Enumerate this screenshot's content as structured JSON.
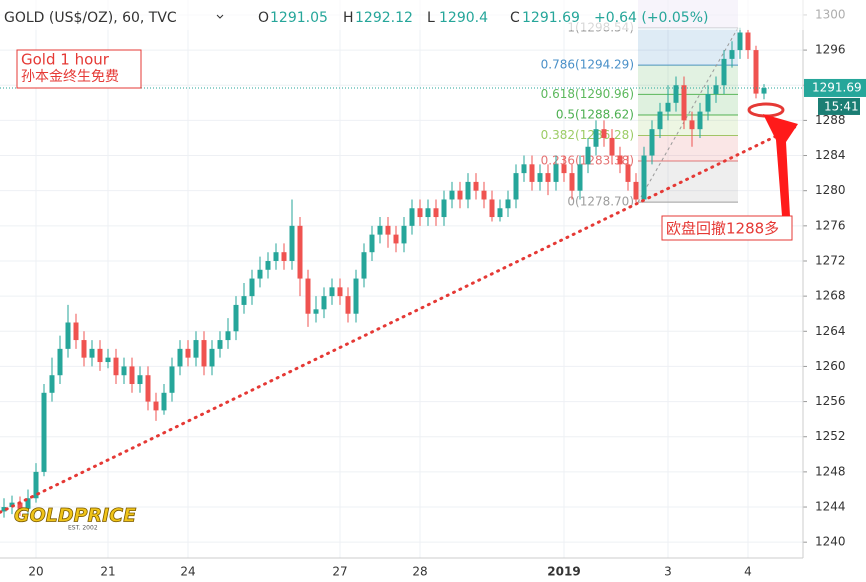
{
  "header": {
    "symbol": "GOLD (US$/OZ), 60, TVC",
    "o": "O",
    "h": "H",
    "l": "L",
    "c": "C",
    "change": "+0.64 (+0.05%)"
  },
  "annotations": {
    "title": "Gold 1 hour",
    "subtitle": "孙本金终生免费",
    "callout": "欧盘回撤1288多",
    "logo": "GOLDPRICE",
    "logo_sub": "EST. 2002",
    "countdown": "15:41"
  },
  "chart_data": {
    "type": "candlestick",
    "up_color": "#26a69a",
    "down_color": "#ef5350",
    "grid": true,
    "categories": [
      null,
      null,
      null,
      null,
      "20",
      null,
      null,
      null,
      null,
      null,
      null,
      null,
      null,
      "21",
      null,
      null,
      null,
      null,
      null,
      null,
      null,
      null,
      null,
      "24",
      null,
      null,
      null,
      null,
      null,
      null,
      null,
      null,
      null,
      null,
      null,
      null,
      null,
      null,
      null,
      null,
      null,
      null,
      "27",
      null,
      null,
      null,
      null,
      null,
      null,
      null,
      null,
      null,
      "28",
      null,
      null,
      null,
      null,
      null,
      null,
      null,
      null,
      null,
      null,
      null,
      null,
      null,
      null,
      null,
      null,
      null,
      "2019",
      null,
      null,
      null,
      null,
      null,
      null,
      null,
      null,
      null,
      null,
      null,
      null,
      "3",
      null,
      null,
      null,
      null,
      null,
      null,
      null,
      null,
      null,
      "4",
      null,
      null
    ],
    "series": {
      "open": [
        1243.5,
        1244,
        1244.5,
        1243.8,
        1245,
        1248,
        1257,
        1259,
        1262,
        1265,
        1263,
        1261,
        1262,
        1260.5,
        1261,
        1259,
        1260,
        1258,
        1259,
        1256,
        1255,
        1257,
        1260,
        1262,
        1261,
        1263,
        1260,
        1262,
        1263,
        1264,
        1267,
        1268,
        1270,
        1271,
        1272,
        1273,
        1272,
        1276,
        1270,
        1266,
        1266.5,
        1268,
        1269,
        1268,
        1266,
        1270,
        1273,
        1275,
        1276,
        1275,
        1274,
        1276,
        1278,
        1277,
        1278,
        1277,
        1279,
        1280,
        1279,
        1281,
        1280,
        1279,
        1277,
        1278,
        1279,
        1282,
        1283,
        1281,
        1282,
        1281,
        1283,
        1282,
        1280,
        1283,
        1285,
        1287,
        1286,
        1284,
        1283,
        1281,
        1279,
        1284,
        1287,
        1289,
        1290,
        1292,
        1288,
        1287,
        1289,
        1291,
        1292,
        1295,
        1296,
        1298,
        1296,
        1291.05
      ],
      "high": [
        1245,
        1245.3,
        1245.2,
        1246,
        1249,
        1258,
        1261,
        1263.5,
        1267,
        1266,
        1264,
        1263,
        1263,
        1262,
        1262,
        1261,
        1261,
        1260,
        1260,
        1257,
        1258,
        1261,
        1263,
        1263,
        1264,
        1264,
        1263,
        1264,
        1265.5,
        1268,
        1269.5,
        1271,
        1272.5,
        1273,
        1274,
        1274,
        1279,
        1277,
        1271,
        1268,
        1269,
        1270,
        1270,
        1269,
        1271,
        1274,
        1276,
        1277,
        1277,
        1276,
        1277,
        1279,
        1279,
        1279,
        1279,
        1280,
        1281,
        1281,
        1282,
        1282,
        1281,
        1280,
        1279,
        1280,
        1283,
        1284,
        1284,
        1283,
        1283,
        1284,
        1284,
        1283,
        1284,
        1286,
        1288,
        1288,
        1287,
        1285,
        1284,
        1282,
        1285,
        1288,
        1290,
        1292,
        1293,
        1293,
        1289,
        1290,
        1292,
        1293,
        1296,
        1297,
        1298.54,
        1298.3,
        1296.5,
        1292.12
      ],
      "low": [
        1242.8,
        1243.2,
        1243,
        1243.2,
        1244.5,
        1247.5,
        1256,
        1258,
        1261,
        1262,
        1260,
        1260,
        1259.5,
        1259.8,
        1258,
        1258,
        1257,
        1257,
        1255,
        1253.8,
        1254.5,
        1256,
        1259,
        1260,
        1260,
        1259,
        1259,
        1261,
        1262,
        1263,
        1266,
        1267,
        1269,
        1270,
        1271,
        1271,
        1271,
        1268,
        1264.5,
        1265,
        1265.5,
        1267,
        1267,
        1265,
        1265,
        1269,
        1272,
        1274,
        1273.5,
        1273,
        1273,
        1275,
        1276,
        1276,
        1276,
        1276,
        1278,
        1278,
        1278,
        1279,
        1278,
        1276.5,
        1276.5,
        1277,
        1278,
        1281,
        1280,
        1280,
        1279.5,
        1280,
        1281,
        1279,
        1279,
        1282,
        1284,
        1285,
        1283,
        1282,
        1280,
        1278.7,
        1278.9,
        1283,
        1286,
        1288,
        1289,
        1287,
        1285,
        1286,
        1288,
        1290,
        1291,
        1294,
        1295,
        1295,
        1290.5,
        1290.4
      ],
      "close": [
        1244,
        1244.5,
        1243.8,
        1245,
        1248,
        1257,
        1259,
        1262,
        1265,
        1263,
        1261,
        1262,
        1260.5,
        1261,
        1259,
        1260,
        1258,
        1259,
        1256,
        1255,
        1257,
        1260,
        1262,
        1261,
        1263,
        1260,
        1262,
        1263,
        1264,
        1267,
        1268,
        1270,
        1271,
        1272,
        1273,
        1272,
        1276,
        1270,
        1266,
        1266.5,
        1268,
        1269,
        1268,
        1266,
        1270,
        1273,
        1275,
        1276,
        1275,
        1274,
        1276,
        1278,
        1277,
        1278,
        1277,
        1279,
        1280,
        1279,
        1281,
        1280,
        1279,
        1277,
        1278,
        1279,
        1282,
        1283,
        1281,
        1282,
        1281,
        1283,
        1282,
        1280,
        1283,
        1285,
        1287,
        1286,
        1284,
        1283,
        1281,
        1279,
        1284,
        1287,
        1289,
        1290,
        1292,
        1288,
        1287,
        1289,
        1291,
        1292,
        1295,
        1296,
        1298,
        1296,
        1291.05,
        1291.69
      ]
    },
    "ylim": [
      1238.2,
      1301.7
    ],
    "yticks": [
      1240,
      1244,
      1248,
      1252,
      1256,
      1260,
      1264,
      1268,
      1272,
      1276,
      1280,
      1284,
      1288,
      1292,
      1296,
      1300
    ],
    "trendline": {
      "start": 1243.4,
      "end": 1287.25,
      "color": "#e53935"
    },
    "fibonacci": [
      {
        "value": 1298.54,
        "label": "1(1298.54)",
        "color": "#9e9e9e"
      },
      {
        "value": 1294.29,
        "label": "0.786(1294.29)",
        "color": "#4a90c8"
      },
      {
        "value": 1290.96,
        "label": "0.618(1290.96)",
        "color": "#5cb85c"
      },
      {
        "value": 1288.62,
        "label": "0.5(1288.62)",
        "color": "#4caf50"
      },
      {
        "value": 1286.28,
        "label": "0.382(1286.28)",
        "color": "#9ccc65"
      },
      {
        "value": 1283.38,
        "label": "0.236(1283.38)",
        "color": "#e57373"
      },
      {
        "value": 1278.7,
        "label": "0(1278.70)",
        "color": "#9e9e9e"
      }
    ]
  }
}
